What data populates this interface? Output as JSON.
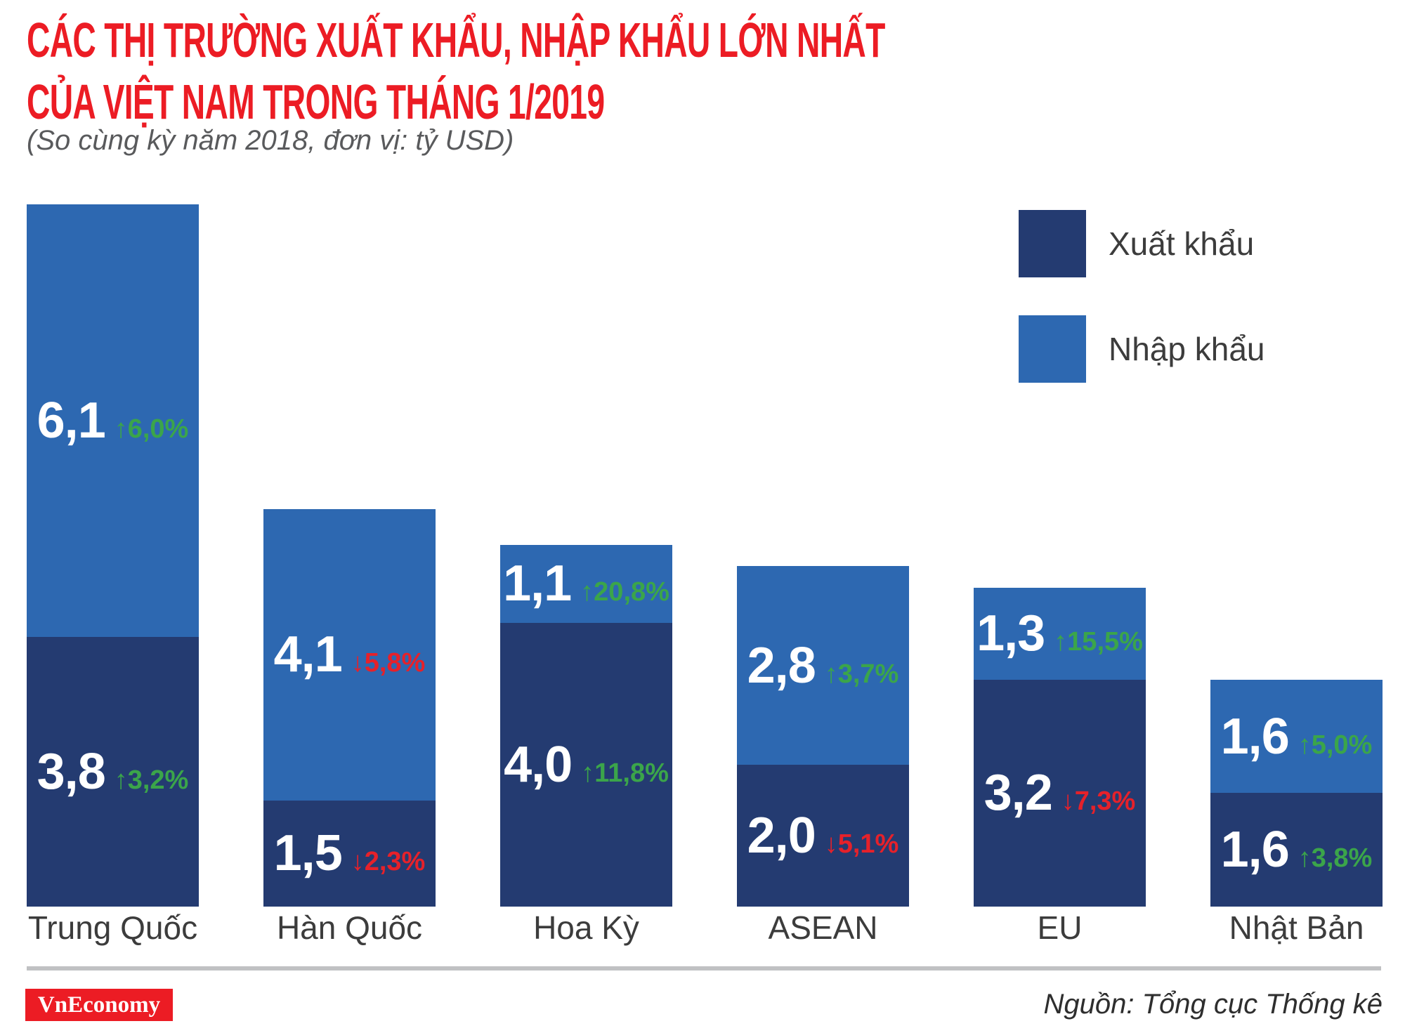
{
  "title": {
    "line1": "CÁC THỊ TRƯỜNG XUẤT KHẨU, NHẬP KHẨU LỚN NHẤT",
    "line2": "CỦA VIỆT NAM TRONG THÁNG 1/2019",
    "subtitle": "(So cùng kỳ năm 2018, đơn vị: tỷ USD)"
  },
  "legend": {
    "export_label": "Xuất khẩu",
    "import_label": "Nhập khẩu"
  },
  "colors": {
    "title_red": "#EC1C24",
    "subtitle_gray": "#595A5C",
    "export_dark_blue": "#243B71",
    "import_light_blue": "#2D68B1",
    "increase_green": "#3BA54A",
    "decrease_red": "#E6212A",
    "category_label": "#3C3C3C",
    "legend_label": "#3C3C3C",
    "divider_gray": "#C0C1C3",
    "logo_red": "#EC1C24",
    "source_text": "#2E2E2E"
  },
  "footer": {
    "logo_text": "VnEconomy",
    "source": "Nguồn: Tổng cục Thống kê"
  },
  "chart_data": {
    "type": "bar",
    "stacked": true,
    "title": "Các thị trường xuất khẩu, nhập khẩu lớn nhất của Việt Nam trong tháng 1/2019",
    "unit": "tỷ USD",
    "comparison": "So cùng kỳ năm 2018",
    "grid": false,
    "legend_position": "top-right",
    "ylim": [
      0,
      9.9
    ],
    "categories": [
      "Trung Quốc",
      "Hàn Quốc",
      "Hoa Kỳ",
      "ASEAN",
      "EU",
      "Nhật Bản"
    ],
    "series": [
      {
        "name": "Xuất khẩu",
        "role": "export",
        "color": "#243B71",
        "values": [
          3.8,
          1.5,
          4.0,
          2.0,
          3.2,
          1.6
        ],
        "value_labels": [
          "3,8",
          "1,5",
          "4,0",
          "2,0",
          "3,2",
          "1,6"
        ],
        "changes": [
          {
            "direction": "up",
            "label": "3,2%"
          },
          {
            "direction": "down",
            "label": "2,3%"
          },
          {
            "direction": "up",
            "label": "11,8%"
          },
          {
            "direction": "down",
            "label": "5,1%"
          },
          {
            "direction": "down",
            "label": "7,3%"
          },
          {
            "direction": "up",
            "label": "3,8%"
          }
        ]
      },
      {
        "name": "Nhập khẩu",
        "role": "import",
        "color": "#2D68B1",
        "values": [
          6.1,
          4.1,
          1.1,
          2.8,
          1.3,
          1.6
        ],
        "value_labels": [
          "6,1",
          "4,1",
          "1,1",
          "2,8",
          "1,3",
          "1,6"
        ],
        "changes": [
          {
            "direction": "up",
            "label": "6,0%"
          },
          {
            "direction": "down",
            "label": "5,8%"
          },
          {
            "direction": "up",
            "label": "20,8%"
          },
          {
            "direction": "up",
            "label": "3,7%"
          },
          {
            "direction": "up",
            "label": "15,5%"
          },
          {
            "direction": "up",
            "label": "5,0%"
          }
        ]
      }
    ]
  }
}
